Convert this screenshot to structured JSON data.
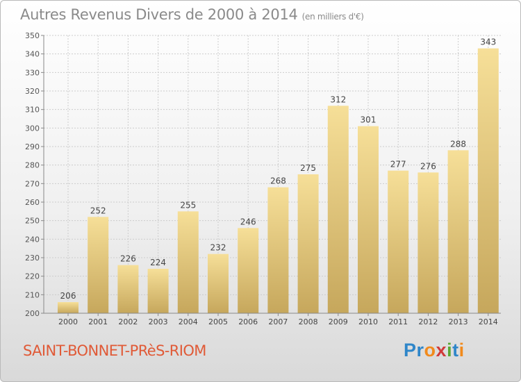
{
  "header": {
    "title": "Autres Revenus Divers de 2000 à 2014",
    "unit": "(en milliers d'€)"
  },
  "footer": {
    "commune": "SAINT-BONNET-PRèS-RIOM",
    "logo_text": "Proxiti"
  },
  "colors": {
    "bar_light": "#f6df98",
    "bar_dark": "#c6a75c",
    "commune": "#e05a37",
    "grid": "#cccccc"
  },
  "chart_data": {
    "type": "bar",
    "title": "Autres Revenus Divers de 2000 à 2014",
    "xlabel": "",
    "ylabel": "",
    "categories": [
      "2000",
      "2001",
      "2002",
      "2003",
      "2004",
      "2005",
      "2006",
      "2007",
      "2008",
      "2009",
      "2010",
      "2011",
      "2012",
      "2013",
      "2014"
    ],
    "values": [
      206,
      252,
      226,
      224,
      255,
      232,
      246,
      268,
      275,
      312,
      301,
      277,
      276,
      288,
      343
    ],
    "ylim": [
      200,
      350
    ],
    "yticks": [
      200,
      210,
      220,
      230,
      240,
      250,
      260,
      270,
      280,
      290,
      300,
      310,
      320,
      330,
      340,
      350
    ],
    "grid": true,
    "data_labels": true
  }
}
